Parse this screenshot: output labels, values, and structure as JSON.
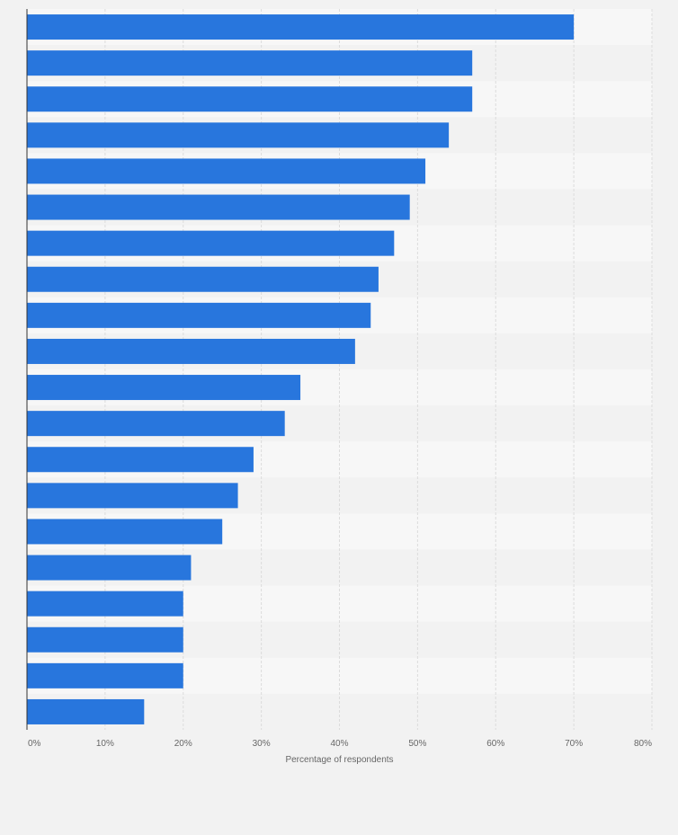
{
  "chart_data": {
    "type": "bar",
    "orientation": "horizontal",
    "title": "",
    "xlabel": "Percentage of respondents",
    "ylabel": "",
    "xlim": [
      0,
      80
    ],
    "x_ticks": [
      "0%",
      "10%",
      "20%",
      "30%",
      "40%",
      "50%",
      "60%",
      "70%",
      "80%"
    ],
    "categories": [
      "",
      "",
      "",
      "",
      "",
      "",
      "",
      "",
      "",
      "",
      "",
      "",
      "",
      "",
      "",
      "",
      "",
      "",
      "",
      ""
    ],
    "values": [
      70,
      57,
      57,
      54,
      51,
      49,
      47,
      45,
      44,
      42,
      35,
      33,
      29,
      27,
      25,
      21,
      20,
      20,
      20,
      15
    ],
    "grid": true,
    "legend": "none",
    "colors": {
      "bar": "#2876dd",
      "row_light": "#f7f7f7",
      "row_dark": "#f2f2f2",
      "grid": "#dcdcdc",
      "axis": "#333333",
      "text": "#666666"
    }
  }
}
